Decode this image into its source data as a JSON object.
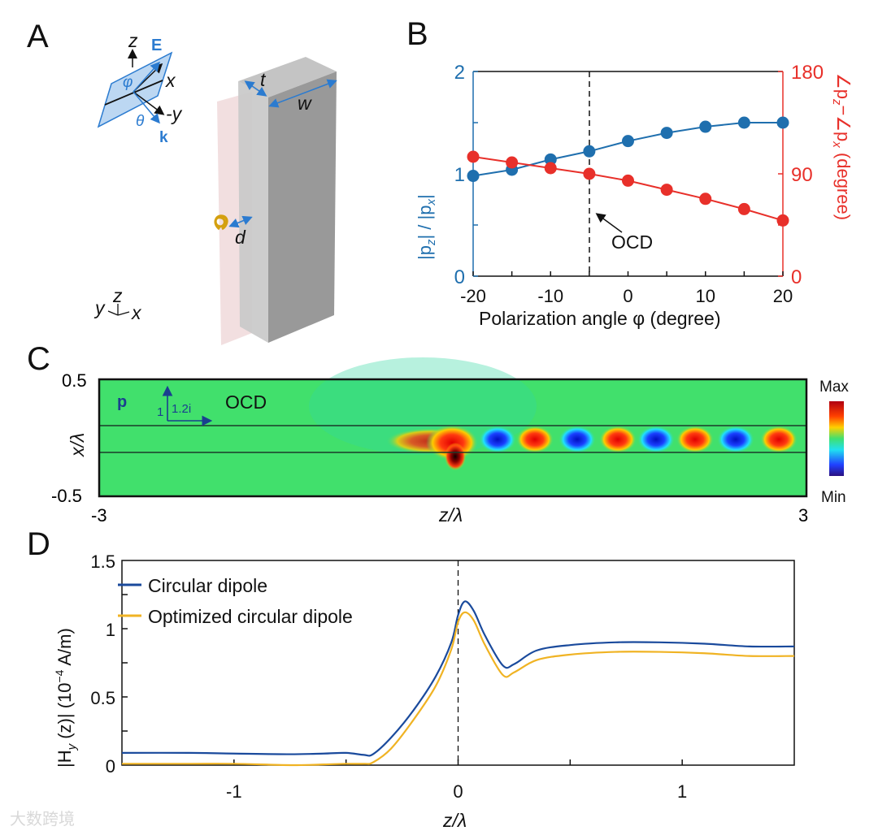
{
  "panels": {
    "a": "A",
    "b": "B",
    "c": "C",
    "d": "D"
  },
  "panel_a": {
    "labels": {
      "z": "z",
      "E": "E",
      "phi": "φ",
      "x": "x",
      "neg_y": "-y",
      "theta": "θ",
      "k": "k",
      "t": "t",
      "w": "w",
      "d": "d"
    },
    "axes_triad": {
      "y": "y",
      "z": "z",
      "x": "x"
    }
  },
  "chart_data": [
    {
      "type": "line",
      "panel": "B",
      "x": [
        -20,
        -15,
        -10,
        -5,
        0,
        5,
        10,
        15,
        20
      ],
      "xlabel": "Polarization angle φ (degree)",
      "xlim": [
        -20,
        20
      ],
      "xticks": [
        "-20",
        "-10",
        "0",
        "10",
        "20"
      ],
      "series": [
        {
          "name": "|p_z| / |p_x|",
          "axis": "left",
          "color": "#1f6fae",
          "values": [
            0.98,
            1.04,
            1.14,
            1.22,
            1.32,
            1.4,
            1.46,
            1.5,
            1.5
          ]
        },
        {
          "name": "∠p_z − ∠p_x",
          "axis": "right",
          "color": "#e8302a",
          "values": [
            105,
            100,
            95,
            90,
            84,
            76,
            68,
            59,
            49
          ]
        }
      ],
      "ylabel_left": {
        "a": "|p",
        "a_sub": "z",
        "b": "| / |p",
        "b_sub": "x",
        "c": "|"
      },
      "ylabel_right": {
        "a": "∠p",
        "a_sub": "z",
        "b": "−∠p",
        "b_sub": "x",
        "c": " (degree)"
      },
      "ylim_left": [
        0,
        2
      ],
      "yticks_left": [
        "0",
        "1",
        "2"
      ],
      "ylim_right": [
        0,
        180
      ],
      "yticks_right": [
        "0",
        "90",
        "180"
      ],
      "vline_x": -5,
      "annotation": "OCD"
    },
    {
      "type": "heatmap",
      "panel": "C",
      "xlabel": "z/λ",
      "ylabel": "x/λ",
      "xlim": [
        -3,
        3
      ],
      "ylim": [
        -0.5,
        0.5
      ],
      "xticks": [
        "-3",
        "3"
      ],
      "yticks": [
        "0.5",
        "-0.5"
      ],
      "colorbar": {
        "max": "Max",
        "min": "Min"
      },
      "annotation": {
        "p": "p",
        "one": "1",
        "imag": "1.2i",
        "label": "OCD"
      }
    },
    {
      "type": "line",
      "panel": "D",
      "xlabel": "z/λ",
      "ylabel": {
        "a": "|H",
        "sub": "y",
        "b": " (z)| (10",
        "sup": "−4",
        "c": " A/m)"
      },
      "xlim": [
        -1.5,
        1.5
      ],
      "ylim": [
        0,
        1.5
      ],
      "xticks": [
        "-1",
        "0",
        "1"
      ],
      "yticks": [
        "0",
        "0.5",
        "1",
        "1.5"
      ],
      "vline_x": 0,
      "legend": "top-left",
      "series": [
        {
          "name": "Circular dipole",
          "color": "#1a4a9c",
          "x": [
            -1.5,
            -1.2,
            -1.0,
            -0.75,
            -0.6,
            -0.5,
            -0.42,
            -0.38,
            -0.3,
            -0.2,
            -0.1,
            -0.03,
            0.0,
            0.03,
            0.07,
            0.12,
            0.2,
            0.25,
            0.35,
            0.5,
            0.7,
            0.9,
            1.1,
            1.3,
            1.5
          ],
          "y": [
            0.09,
            0.09,
            0.085,
            0.08,
            0.085,
            0.09,
            0.075,
            0.08,
            0.2,
            0.4,
            0.65,
            0.9,
            1.1,
            1.2,
            1.13,
            0.95,
            0.73,
            0.74,
            0.84,
            0.88,
            0.9,
            0.9,
            0.89,
            0.87,
            0.87
          ]
        },
        {
          "name": "Optimized circular dipole",
          "color": "#f0b323",
          "x": [
            -1.5,
            -1.2,
            -1.0,
            -0.75,
            -0.6,
            -0.5,
            -0.42,
            -0.38,
            -0.3,
            -0.2,
            -0.1,
            -0.03,
            0.0,
            0.03,
            0.07,
            0.12,
            0.2,
            0.25,
            0.35,
            0.5,
            0.7,
            0.9,
            1.1,
            1.3,
            1.5
          ],
          "y": [
            0.01,
            0.01,
            0.01,
            0.0,
            0.005,
            0.01,
            0.01,
            0.02,
            0.12,
            0.33,
            0.58,
            0.85,
            1.05,
            1.12,
            1.06,
            0.88,
            0.66,
            0.68,
            0.77,
            0.81,
            0.83,
            0.83,
            0.82,
            0.8,
            0.8
          ]
        }
      ]
    }
  ],
  "watermark": "大数跨境"
}
